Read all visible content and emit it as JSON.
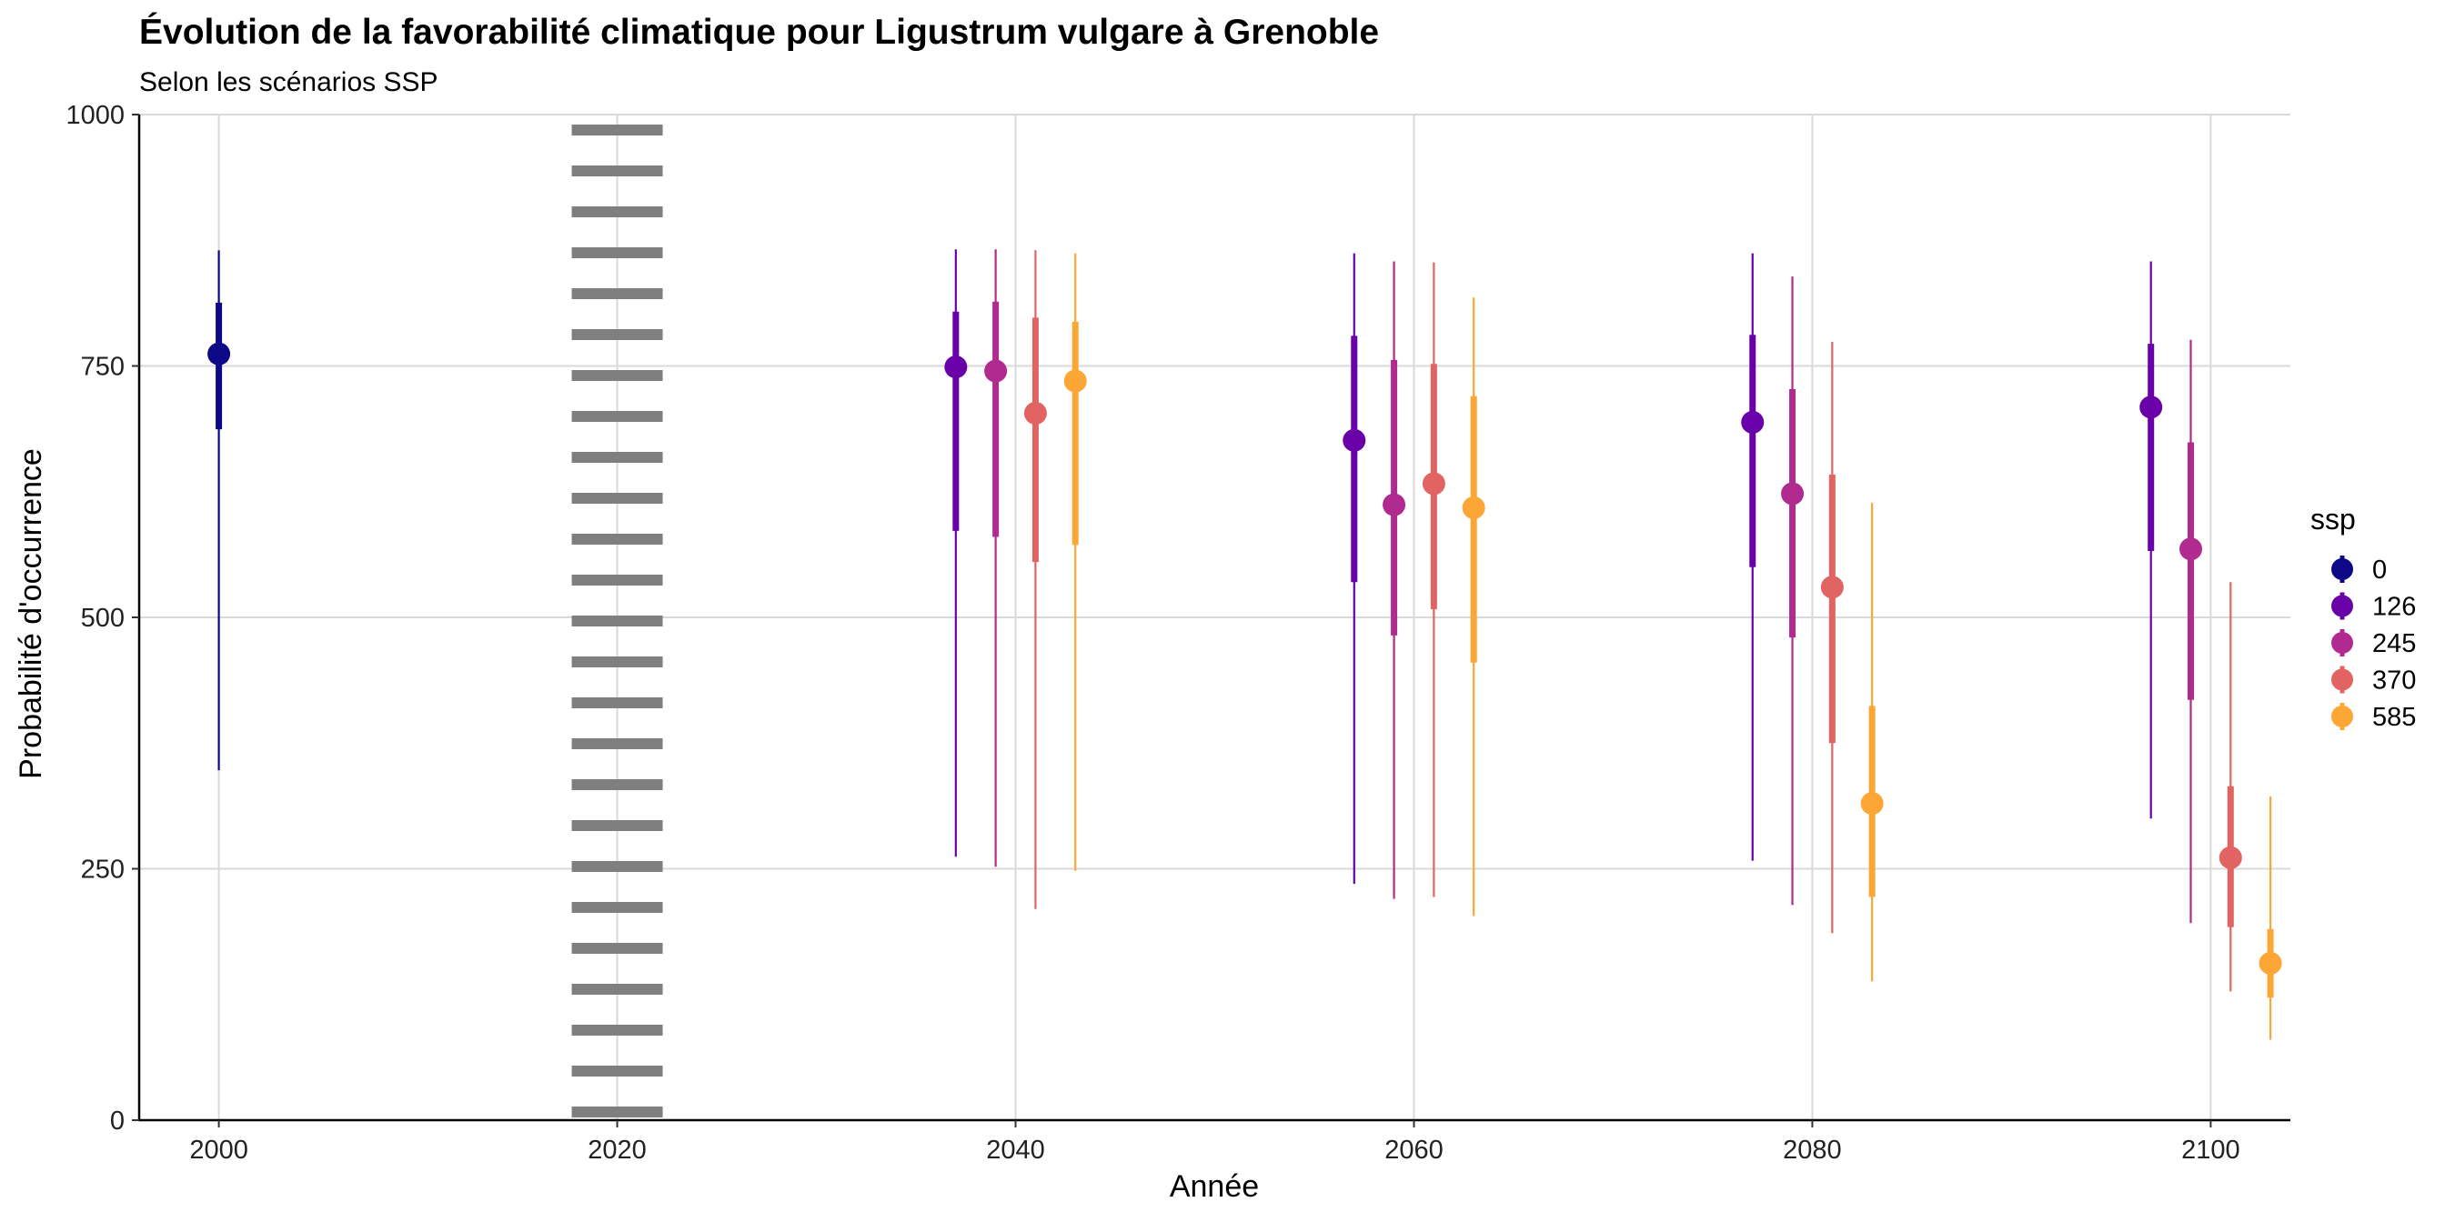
{
  "chart_data": {
    "type": "scatter",
    "title": "Évolution de la favorabilité climatique pour Ligustrum vulgare à Grenoble",
    "subtitle": "Selon les scénarios SSP",
    "xlabel": "Année",
    "ylabel": "Probabilité d'occurrence",
    "xlim": [
      1996,
      2104
    ],
    "ylim": [
      0,
      1000
    ],
    "x_ticks": [
      2000,
      2020,
      2040,
      2060,
      2080,
      2100
    ],
    "y_ticks": [
      0,
      250,
      500,
      750,
      1000
    ],
    "x_tick_labels": [
      "2000",
      "2020",
      "2040",
      "2060",
      "2080",
      "2100"
    ],
    "y_tick_labels": [
      "0",
      "250",
      "500",
      "750",
      "1000"
    ],
    "grid": true,
    "reference_line": {
      "x": 2020,
      "style": "dotted",
      "color": "#7f7f7f"
    },
    "legend": {
      "title": "ssp",
      "placement": "right"
    },
    "series": [
      {
        "name": "0",
        "color": "#0d0887",
        "points": [
          {
            "x": 2000,
            "y": 762,
            "inner": [
              687,
              813
            ],
            "outer": [
              348,
              865
            ]
          }
        ]
      },
      {
        "name": "126",
        "color": "#6a00a8",
        "points": [
          {
            "x": 2037,
            "y": 749,
            "inner": [
              586,
              804
            ],
            "outer": [
              262,
              866
            ]
          },
          {
            "x": 2057,
            "y": 676,
            "inner": [
              535,
              780
            ],
            "outer": [
              235,
              862
            ]
          },
          {
            "x": 2077,
            "y": 694,
            "inner": [
              550,
              781
            ],
            "outer": [
              258,
              862
            ]
          },
          {
            "x": 2097,
            "y": 709,
            "inner": [
              566,
              772
            ],
            "outer": [
              300,
              854
            ]
          }
        ]
      },
      {
        "name": "245",
        "color": "#b12a90",
        "points": [
          {
            "x": 2039,
            "y": 745,
            "inner": [
              580,
              814
            ],
            "outer": [
              252,
              866
            ]
          },
          {
            "x": 2059,
            "y": 612,
            "inner": [
              482,
              756
            ],
            "outer": [
              220,
              854
            ]
          },
          {
            "x": 2079,
            "y": 623,
            "inner": [
              480,
              727
            ],
            "outer": [
              214,
              839
            ]
          },
          {
            "x": 2099,
            "y": 568,
            "inner": [
              418,
              674
            ],
            "outer": [
              196,
              776
            ]
          }
        ]
      },
      {
        "name": "370",
        "color": "#e16462",
        "points": [
          {
            "x": 2041,
            "y": 703,
            "inner": [
              555,
              798
            ],
            "outer": [
              210,
              865
            ]
          },
          {
            "x": 2061,
            "y": 633,
            "inner": [
              508,
              752
            ],
            "outer": [
              222,
              853
            ]
          },
          {
            "x": 2081,
            "y": 530,
            "inner": [
              375,
              642
            ],
            "outer": [
              186,
              774
            ]
          },
          {
            "x": 2101,
            "y": 261,
            "inner": [
              192,
              332
            ],
            "outer": [
              128,
              535
            ]
          }
        ]
      },
      {
        "name": "585",
        "color": "#fca636",
        "points": [
          {
            "x": 2043,
            "y": 735,
            "inner": [
              572,
              794
            ],
            "outer": [
              248,
              862
            ]
          },
          {
            "x": 2063,
            "y": 609,
            "inner": [
              455,
              720
            ],
            "outer": [
              203,
              818
            ]
          },
          {
            "x": 2083,
            "y": 315,
            "inner": [
              222,
              412
            ],
            "outer": [
              138,
              614
            ]
          },
          {
            "x": 2103,
            "y": 156,
            "inner": [
              122,
              190
            ],
            "outer": [
              80,
              322
            ]
          }
        ]
      }
    ]
  }
}
